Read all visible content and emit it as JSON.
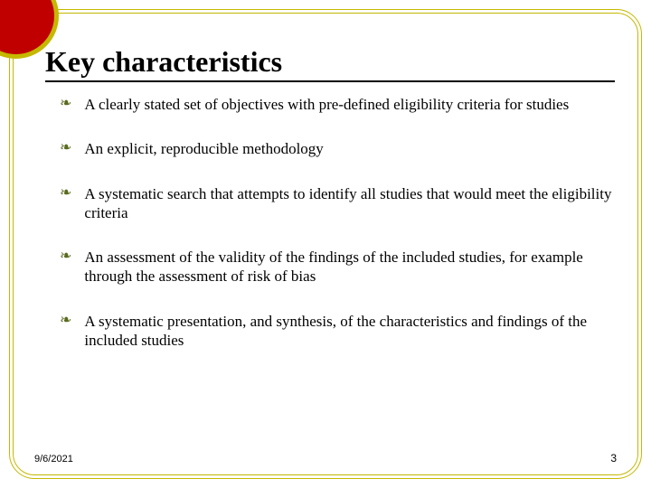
{
  "slide": {
    "title": "Key characteristics",
    "bullets": [
      "A clearly stated set of objectives with pre-defined eligibility criteria for studies",
      "An explicit, reproducible methodology",
      "A systematic search that attempts to identify all studies that would meet the eligibility criteria",
      "An assessment of the validity of the findings of the included studies, for example through the assessment of risk of bias",
      "A systematic presentation, and synthesis, of the characteristics and findings of the included studies"
    ],
    "footer_date": "9/6/2021",
    "page_number": "3"
  },
  "style": {
    "title_color": "#000000",
    "title_fontsize": 32,
    "bullet_fontsize": 17,
    "bullet_icon_color": "#5a6b1f",
    "border_color": "#c5b800",
    "corner_fill": "#c00000",
    "background": "#ffffff",
    "bullet_glyph": "❧"
  }
}
